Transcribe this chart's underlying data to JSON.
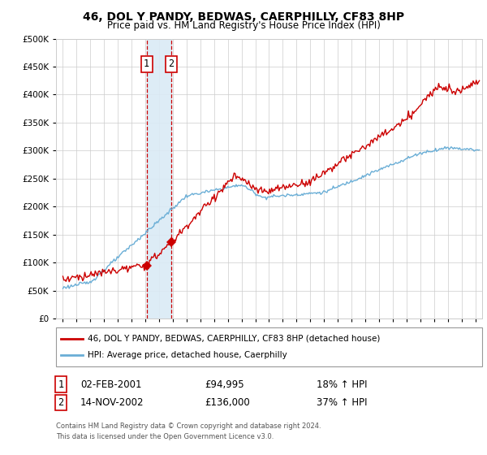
{
  "title": "46, DOL Y PANDY, BEDWAS, CAERPHILLY, CF83 8HP",
  "subtitle": "Price paid vs. HM Land Registry's House Price Index (HPI)",
  "sale1_date": "02-FEB-2001",
  "sale1_price": 94995,
  "sale1_hpi": "18% ↑ HPI",
  "sale1_label": "1",
  "sale1_x": 2001.09,
  "sale2_date": "14-NOV-2002",
  "sale2_price": 136000,
  "sale2_hpi": "37% ↑ HPI",
  "sale2_label": "2",
  "sale2_x": 2002.87,
  "legend_line1": "46, DOL Y PANDY, BEDWAS, CAERPHILLY, CF83 8HP (detached house)",
  "legend_line2": "HPI: Average price, detached house, Caerphilly",
  "footnote1": "Contains HM Land Registry data © Crown copyright and database right 2024.",
  "footnote2": "This data is licensed under the Open Government Licence v3.0.",
  "hpi_color": "#6aaed6",
  "price_color": "#cc0000",
  "sale_marker_color": "#cc0000",
  "shading_color": "#daeaf5",
  "grid_color": "#cccccc",
  "ylim_min": 0,
  "ylim_max": 500000,
  "xlim_min": 1994.5,
  "xlim_max": 2025.5
}
